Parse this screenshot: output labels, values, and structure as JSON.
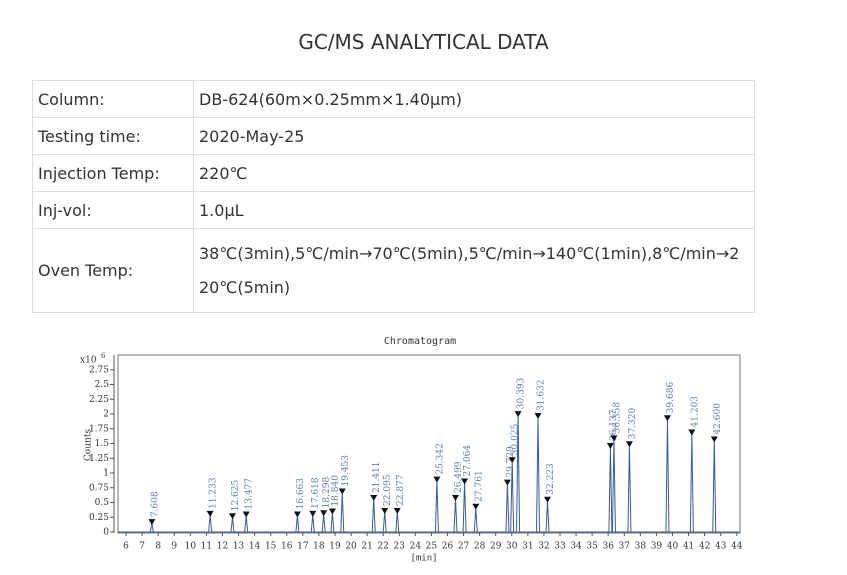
{
  "header": {
    "title": "GC/MS ANALYTICAL DATA"
  },
  "table": {
    "rows": [
      [
        "Column:",
        "DB-624(60m×0.25mm×1.40μm)"
      ],
      [
        "Testing time:",
        "2020-May-25"
      ],
      [
        "Injection Temp:",
        "220℃"
      ],
      [
        "Inj-vol:",
        "1.0μL"
      ],
      [
        "Oven Temp:",
        "38℃(3min),5℃/min→70℃(5min),5℃/min→140℃(1min),8℃/min→220℃(5min)"
      ]
    ]
  },
  "chart_data": {
    "type": "chromatogram",
    "title": "Chromatogram",
    "x_label": "[min]",
    "y_label": "Counts",
    "y_multiplier": {
      "base": "x10",
      "exponent": "6"
    },
    "x": [
      7.608,
      11.233,
      12.625,
      13.477,
      16.663,
      17.618,
      18.298,
      18.84,
      19.453,
      21.411,
      22.095,
      22.877,
      25.342,
      26.499,
      27.064,
      27.761,
      29.729,
      30.025,
      30.393,
      31.632,
      32.223,
      36.137,
      36.358,
      37.32,
      39.686,
      41.203,
      42.6
    ],
    "labels": [
      "7.608",
      "11.233",
      "12.625",
      "13.477",
      "16.663",
      "17.618",
      "18.298",
      "18.840",
      "19.453",
      "21.411",
      "22.095",
      "22.877",
      "25.342",
      "26.499",
      "27.064",
      "27.761",
      "29.729",
      "30.025",
      "30.393",
      "31.632",
      "32.223",
      "36.137",
      "36.358",
      "37.320",
      "39.686",
      "41.203",
      "42.600"
    ],
    "values": [
      0.15,
      0.29,
      0.25,
      0.28,
      0.28,
      0.29,
      0.3,
      0.33,
      0.67,
      0.56,
      0.34,
      0.34,
      0.87,
      0.56,
      0.84,
      0.41,
      0.82,
      1.2,
      1.98,
      1.95,
      0.53,
      1.44,
      1.57,
      1.47,
      1.91,
      1.67,
      1.55
    ],
    "color": "#3b5b9a",
    "label_color": "#5a7fb5",
    "xlim": [
      5.5,
      44.2
    ],
    "ylim": [
      0,
      3.0
    ],
    "xticks": [
      6,
      7,
      8,
      9,
      10,
      11,
      12,
      13,
      14,
      15,
      16,
      17,
      18,
      19,
      20,
      21,
      22,
      23,
      24,
      25,
      26,
      27,
      28,
      29,
      30,
      31,
      32,
      33,
      34,
      35,
      36,
      37,
      38,
      39,
      40,
      41,
      42,
      43,
      44
    ],
    "yticks": [
      0,
      0.25,
      0.5,
      0.75,
      1,
      1.25,
      1.5,
      1.75,
      2,
      2.25,
      2.5,
      2.75
    ]
  }
}
